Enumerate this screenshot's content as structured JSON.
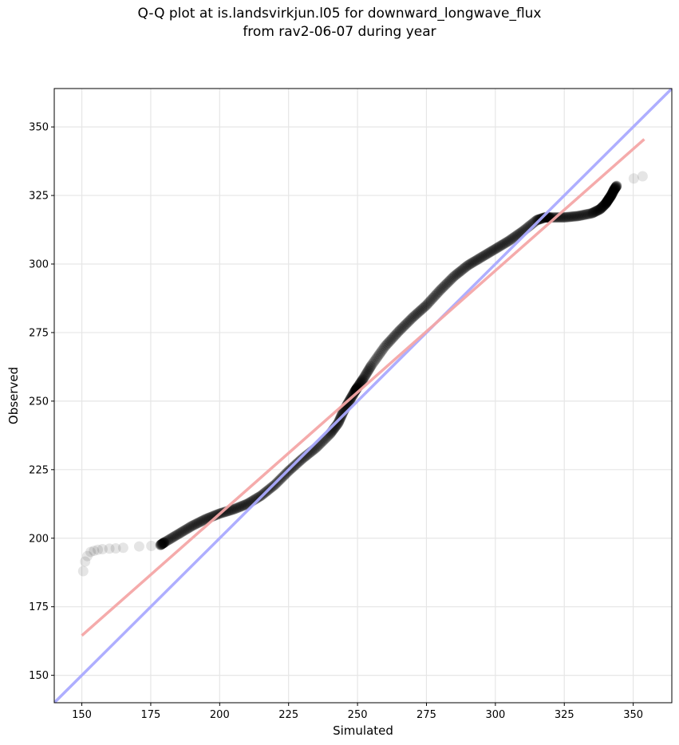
{
  "chart_data": {
    "type": "scatter",
    "title": "Q-Q plot at is.landsvirkjun.l05 for downward_longwave_flux",
    "subtitle": "from rav2-06-07 during year",
    "xlabel": "Simulated",
    "ylabel": "Observed",
    "xlim": [
      140,
      364
    ],
    "ylim": [
      140,
      364
    ],
    "xticks": [
      150,
      175,
      200,
      225,
      250,
      275,
      300,
      325,
      350
    ],
    "yticks": [
      150,
      175,
      200,
      225,
      250,
      275,
      300,
      325,
      350
    ],
    "grid": true,
    "marker_color": "#000000",
    "identity_line": {
      "x": [
        140,
        364
      ],
      "y": [
        140,
        364
      ],
      "color": "#aaaaff"
    },
    "fit_line": {
      "x": [
        150,
        354
      ],
      "y": [
        164.5,
        345.5
      ],
      "color": "#f4a7a7"
    },
    "tail_points": {
      "x": [
        150.5,
        151.2,
        152.0,
        153.2,
        154.4,
        155.8,
        157.5,
        160.0,
        162.3,
        165.0,
        170.8,
        175.2,
        350.2,
        353.4
      ],
      "y": [
        188.0,
        191.5,
        193.5,
        195.0,
        195.4,
        195.8,
        196.0,
        196.2,
        196.3,
        196.5,
        197.0,
        197.2,
        331.2,
        332.0
      ]
    },
    "quantile_curve": {
      "x": [
        178.5,
        180,
        185,
        190,
        195,
        200,
        205,
        210,
        215,
        220,
        225,
        230,
        235,
        240,
        243,
        245,
        247,
        249,
        250,
        252,
        255,
        260,
        265,
        270,
        275,
        280,
        285,
        290,
        295,
        300,
        305,
        310,
        315,
        318,
        320,
        325,
        330,
        335,
        338,
        340,
        341,
        342,
        343,
        344
      ],
      "y": [
        197.5,
        198.5,
        201.5,
        204.5,
        207.0,
        209.0,
        210.5,
        212.5,
        215.5,
        219.5,
        224.5,
        229.0,
        233.0,
        238.0,
        242.0,
        246.5,
        250.0,
        253.5,
        255.0,
        258.0,
        263.0,
        270.0,
        275.5,
        280.5,
        285.0,
        290.5,
        295.5,
        299.5,
        302.5,
        305.5,
        308.5,
        312.0,
        316.0,
        317.0,
        317.0,
        317.0,
        317.5,
        318.5,
        320.0,
        322.0,
        323.5,
        325.0,
        327.0,
        328.5
      ]
    }
  }
}
